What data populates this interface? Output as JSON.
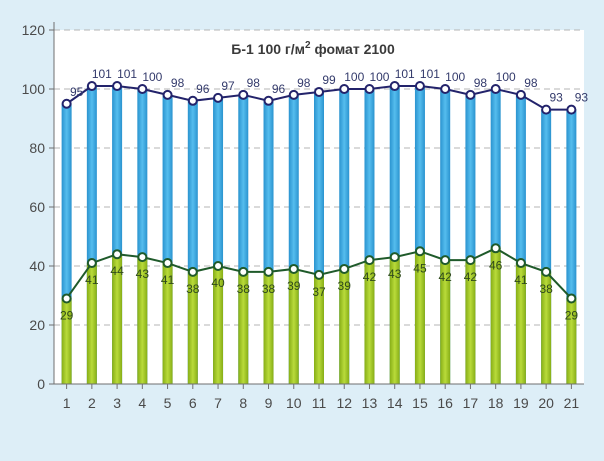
{
  "chart_data": {
    "type": "bar",
    "title": "Б-1 100 г/м",
    "title_superscript": "2",
    "title_suffix": " фомат 2100",
    "categories": [
      "1",
      "2",
      "3",
      "4",
      "5",
      "6",
      "7",
      "8",
      "9",
      "10",
      "11",
      "12",
      "13",
      "14",
      "15",
      "16",
      "17",
      "18",
      "19",
      "20",
      "21"
    ],
    "series": [
      {
        "values": [
          95,
          101,
          101,
          100,
          98,
          96,
          97,
          98,
          96,
          98,
          99,
          100,
          100,
          101,
          101,
          100,
          98,
          100,
          98,
          93,
          93
        ],
        "color": "#36a9df",
        "line_color": "#23236b"
      },
      {
        "values": [
          29,
          41,
          44,
          43,
          41,
          38,
          40,
          38,
          38,
          39,
          37,
          39,
          42,
          43,
          45,
          42,
          42,
          46,
          41,
          38,
          29
        ],
        "color": "#a3c82b",
        "line_color": "#1f5a2a"
      }
    ],
    "ylim": [
      0,
      120
    ],
    "yticks": [
      0,
      20,
      40,
      60,
      80,
      100,
      120
    ],
    "grid": true
  }
}
